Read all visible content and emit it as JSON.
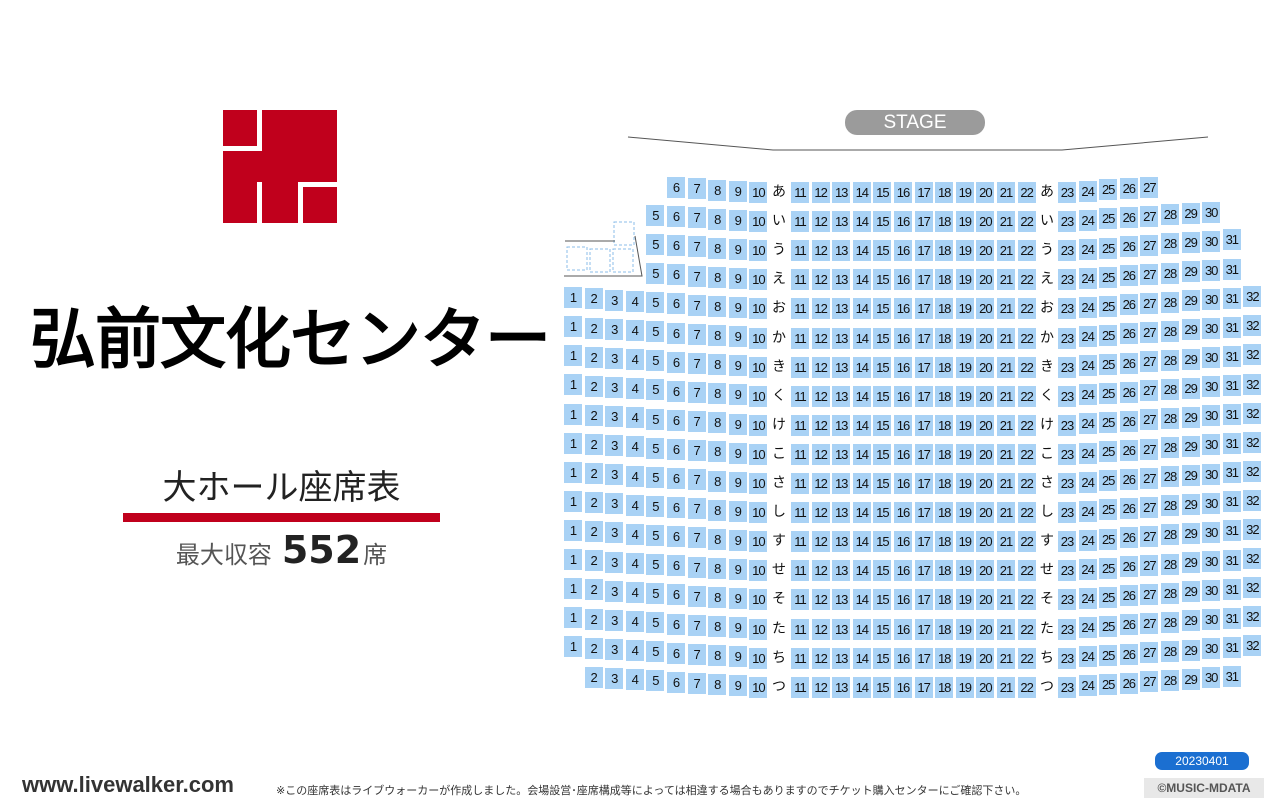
{
  "venue": {
    "name": "弘前文化センター",
    "hall": "大ホール座席表",
    "capacity_label": "最大収容",
    "capacity": "552",
    "capacity_unit": "席"
  },
  "stage": {
    "label": "STAGE"
  },
  "seating": {
    "rows": [
      {
        "label": "あ",
        "left_seats": [
          6,
          7,
          8,
          9,
          10
        ],
        "center_seats": [
          11,
          22
        ],
        "right_seats": [
          23,
          27
        ]
      },
      {
        "label": "い",
        "left_seats": [
          5,
          10
        ],
        "center_seats": [
          11,
          22
        ],
        "right_seats": [
          23,
          30
        ]
      },
      {
        "label": "う",
        "left_seats": [
          5,
          10
        ],
        "center_seats": [
          11,
          22
        ],
        "right_seats": [
          23,
          31
        ]
      },
      {
        "label": "え",
        "left_seats": [
          5,
          10
        ],
        "center_seats": [
          11,
          22
        ],
        "right_seats": [
          23,
          31
        ]
      },
      {
        "label": "お",
        "left_seats": [
          1,
          10
        ],
        "center_seats": [
          11,
          22
        ],
        "right_seats": [
          23,
          32
        ]
      },
      {
        "label": "か",
        "left_seats": [
          1,
          10
        ],
        "center_seats": [
          11,
          22
        ],
        "right_seats": [
          23,
          32
        ]
      },
      {
        "label": "き",
        "left_seats": [
          1,
          10
        ],
        "center_seats": [
          11,
          22
        ],
        "right_seats": [
          23,
          32
        ]
      },
      {
        "label": "く",
        "left_seats": [
          1,
          10
        ],
        "center_seats": [
          11,
          22
        ],
        "right_seats": [
          23,
          32
        ]
      },
      {
        "label": "け",
        "left_seats": [
          1,
          10
        ],
        "center_seats": [
          11,
          22
        ],
        "right_seats": [
          23,
          32
        ]
      },
      {
        "label": "こ",
        "left_seats": [
          1,
          10
        ],
        "center_seats": [
          11,
          22
        ],
        "right_seats": [
          23,
          32
        ]
      },
      {
        "label": "さ",
        "left_seats": [
          1,
          10
        ],
        "center_seats": [
          11,
          22
        ],
        "right_seats": [
          23,
          32
        ]
      },
      {
        "label": "し",
        "left_seats": [
          1,
          10
        ],
        "center_seats": [
          11,
          22
        ],
        "right_seats": [
          23,
          32
        ]
      },
      {
        "label": "す",
        "left_seats": [
          1,
          10
        ],
        "center_seats": [
          11,
          22
        ],
        "right_seats": [
          23,
          32
        ]
      },
      {
        "label": "せ",
        "left_seats": [
          1,
          10
        ],
        "center_seats": [
          11,
          22
        ],
        "right_seats": [
          23,
          32
        ]
      },
      {
        "label": "そ",
        "left_seats": [
          1,
          10
        ],
        "center_seats": [
          11,
          22
        ],
        "right_seats": [
          23,
          32
        ]
      },
      {
        "label": "た",
        "left_seats": [
          1,
          10
        ],
        "center_seats": [
          11,
          22
        ],
        "right_seats": [
          23,
          32
        ]
      },
      {
        "label": "ち",
        "left_seats": [
          1,
          10
        ],
        "center_seats": [
          11,
          22
        ],
        "right_seats": [
          23,
          32
        ]
      },
      {
        "label": "つ",
        "left_seats": [
          2,
          10
        ],
        "center_seats": [
          11,
          22
        ],
        "right_seats": [
          23,
          31
        ]
      }
    ]
  },
  "footer": {
    "site": "www.livewalker.com",
    "note": "※この座席表はライブウォーカーが作成しました。会場設営･座席構成等によっては相違する場合もありますのでチケット購入センターにご確認下さい。",
    "version": "20230401",
    "copyright": "©MUSIC-MDATA"
  },
  "colors": {
    "seat": "#a9d2f5",
    "brand_red": "#c0001c",
    "badge_blue": "#1b6fd1"
  }
}
